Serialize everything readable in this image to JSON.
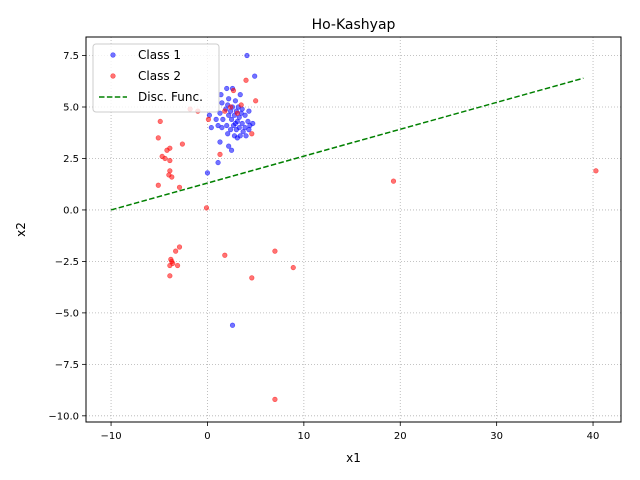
{
  "chart_data": {
    "type": "scatter",
    "title": "Ho-Kashyap",
    "xlabel": "x1",
    "ylabel": "x2",
    "xlim": [
      -12.6,
      42.9
    ],
    "ylim": [
      -10.3,
      8.4
    ],
    "xticks": [
      -10,
      0,
      10,
      20,
      30,
      40
    ],
    "yticks": [
      -10.0,
      -7.5,
      -5.0,
      -2.5,
      0.0,
      2.5,
      5.0,
      7.5
    ],
    "xtick_labels": [
      "−10",
      "0",
      "10",
      "20",
      "30",
      "40"
    ],
    "ytick_labels": [
      "−10.0",
      "−7.5",
      "−5.0",
      "−2.5",
      "0.0",
      "2.5",
      "5.0",
      "7.5"
    ],
    "grid": true,
    "legend_position": "top-left",
    "series": [
      {
        "name": "Class 1",
        "color": "#0000ff",
        "marker": "circle",
        "points": [
          [
            4.1,
            7.5
          ],
          [
            4.9,
            6.5
          ],
          [
            2.0,
            5.9
          ],
          [
            2.6,
            5.9
          ],
          [
            3.4,
            5.6
          ],
          [
            1.4,
            5.6
          ],
          [
            1.5,
            5.2
          ],
          [
            2.2,
            5.4
          ],
          [
            2.9,
            5.3
          ],
          [
            2.1,
            5.1
          ],
          [
            2.6,
            5.0
          ],
          [
            3.2,
            5.0
          ],
          [
            1.9,
            4.9
          ],
          [
            2.4,
            4.8
          ],
          [
            3.0,
            4.8
          ],
          [
            3.6,
            4.9
          ],
          [
            4.3,
            4.8
          ],
          [
            1.3,
            4.7
          ],
          [
            2.2,
            4.6
          ],
          [
            2.8,
            4.6
          ],
          [
            3.3,
            4.5
          ],
          [
            3.9,
            4.6
          ],
          [
            1.6,
            4.4
          ],
          [
            2.5,
            4.4
          ],
          [
            3.1,
            4.3
          ],
          [
            3.6,
            4.2
          ],
          [
            4.2,
            4.3
          ],
          [
            4.7,
            4.2
          ],
          [
            0.9,
            4.4
          ],
          [
            1.1,
            4.1
          ],
          [
            2.0,
            4.1
          ],
          [
            2.7,
            4.1
          ],
          [
            3.3,
            4.0
          ],
          [
            3.9,
            4.0
          ],
          [
            1.5,
            4.0
          ],
          [
            2.4,
            3.9
          ],
          [
            3.0,
            3.9
          ],
          [
            3.7,
            3.8
          ],
          [
            4.3,
            3.9
          ],
          [
            2.1,
            3.7
          ],
          [
            2.8,
            3.6
          ],
          [
            3.4,
            3.6
          ],
          [
            4.0,
            3.6
          ],
          [
            3.1,
            3.5
          ],
          [
            1.3,
            3.3
          ],
          [
            2.2,
            3.1
          ],
          [
            2.5,
            2.9
          ],
          [
            1.1,
            2.3
          ],
          [
            0.0,
            1.8
          ],
          [
            0.2,
            4.6
          ],
          [
            0.4,
            4.0
          ],
          [
            2.6,
            -5.6
          ],
          [
            4.4,
            4.1
          ],
          [
            3.5,
            4.7
          ],
          [
            2.9,
            4.2
          ]
        ]
      },
      {
        "name": "Class 2",
        "color": "#ff0000",
        "marker": "circle",
        "points": [
          [
            2.7,
            5.8
          ],
          [
            4.0,
            6.3
          ],
          [
            5.0,
            5.3
          ],
          [
            3.5,
            5.1
          ],
          [
            2.4,
            5.0
          ],
          [
            1.8,
            4.8
          ],
          [
            3.1,
            4.7
          ],
          [
            0.1,
            4.4
          ],
          [
            -1.8,
            4.9
          ],
          [
            -1.0,
            4.8
          ],
          [
            -4.9,
            4.3
          ],
          [
            4.6,
            3.7
          ],
          [
            -5.1,
            3.5
          ],
          [
            -2.6,
            3.2
          ],
          [
            -4.2,
            2.9
          ],
          [
            -3.9,
            3.0
          ],
          [
            1.3,
            2.7
          ],
          [
            -4.7,
            2.6
          ],
          [
            -4.4,
            2.5
          ],
          [
            -3.9,
            2.4
          ],
          [
            -3.9,
            1.9
          ],
          [
            -4.0,
            1.7
          ],
          [
            -3.7,
            1.6
          ],
          [
            -5.1,
            1.2
          ],
          [
            -2.9,
            1.1
          ],
          [
            -0.1,
            0.1
          ],
          [
            19.3,
            1.4
          ],
          [
            40.3,
            1.9
          ],
          [
            -2.9,
            -1.8
          ],
          [
            -3.3,
            -2.0
          ],
          [
            7.0,
            -2.0
          ],
          [
            1.8,
            -2.2
          ],
          [
            -3.8,
            -2.4
          ],
          [
            -3.7,
            -2.5
          ],
          [
            -3.6,
            -2.6
          ],
          [
            -3.9,
            -2.7
          ],
          [
            -3.1,
            -2.7
          ],
          [
            8.9,
            -2.8
          ],
          [
            -3.9,
            -3.2
          ],
          [
            4.6,
            -3.3
          ],
          [
            7.0,
            -9.2
          ]
        ]
      },
      {
        "name": "Disc. Func.",
        "color": "#008000",
        "style": "dashed",
        "points": [
          [
            -10,
            0.0
          ],
          [
            39,
            6.4
          ]
        ]
      }
    ]
  }
}
